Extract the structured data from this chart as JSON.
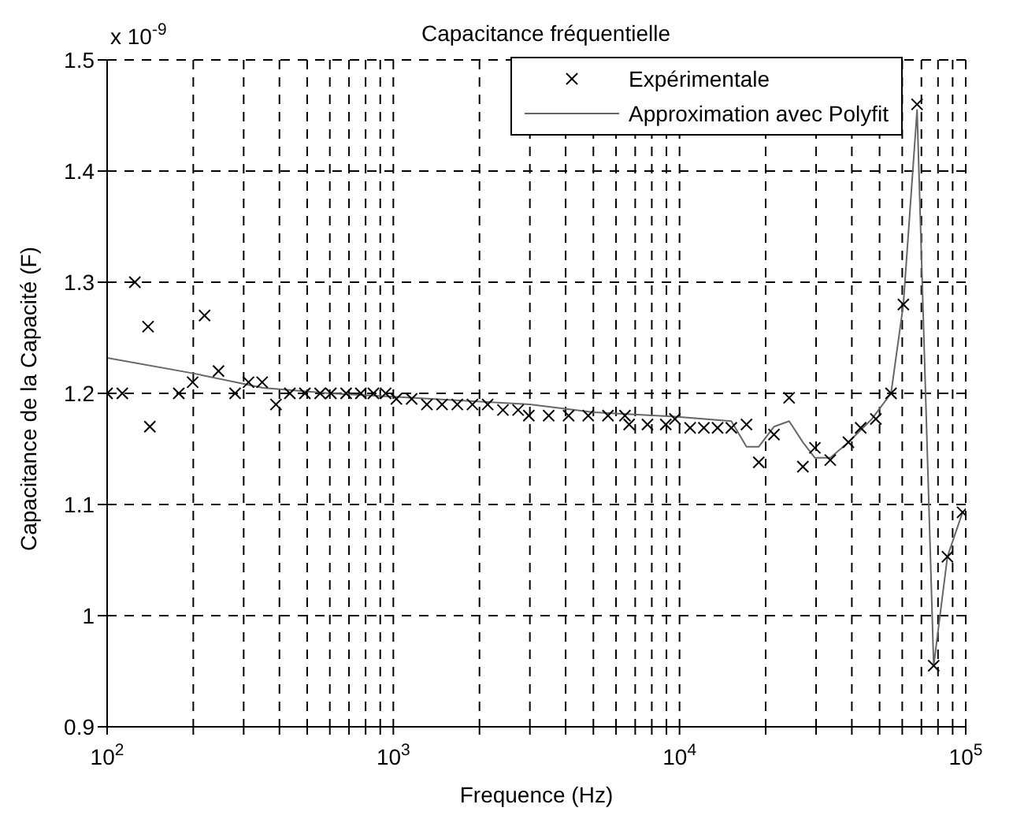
{
  "chart_data": {
    "type": "scatter",
    "title": "Capacitance fréquentielle",
    "xlabel": "Frequence (Hz)",
    "ylabel": "Capacitance de la Capacité (F)",
    "annotations": [
      "x 10$^{-9}$"
    ],
    "log": "x",
    "grid": true,
    "legend": "top right",
    "xlim": [
      100,
      100000
    ],
    "ylim": [
      0.9,
      1.5
    ],
    "xticks": [
      {
        "value": 100,
        "label": "10$^{2}$"
      },
      {
        "value": 200,
        "label": null
      },
      {
        "value": 300,
        "label": null
      },
      {
        "value": 400,
        "label": null
      },
      {
        "value": 500,
        "label": null
      },
      {
        "value": 600,
        "label": null
      },
      {
        "value": 700,
        "label": null
      },
      {
        "value": 800,
        "label": null
      },
      {
        "value": 900,
        "label": null
      },
      {
        "value": 1000,
        "label": "10$^{3}$"
      },
      {
        "value": 2000,
        "label": null
      },
      {
        "value": 3000,
        "label": null
      },
      {
        "value": 4000,
        "label": null
      },
      {
        "value": 5000,
        "label": null
      },
      {
        "value": 6000,
        "label": null
      },
      {
        "value": 7000,
        "label": null
      },
      {
        "value": 8000,
        "label": null
      },
      {
        "value": 9000,
        "label": null
      },
      {
        "value": 10000,
        "label": "10$^{4}$"
      },
      {
        "value": 20000,
        "label": null
      },
      {
        "value": 30000,
        "label": null
      },
      {
        "value": 40000,
        "label": null
      },
      {
        "value": 50000,
        "label": null
      },
      {
        "value": 60000,
        "label": null
      },
      {
        "value": 70000,
        "label": null
      },
      {
        "value": 80000,
        "label": null
      },
      {
        "value": 90000,
        "label": null
      },
      {
        "value": 100000,
        "label": "10$^{5}$"
      }
    ],
    "yticks": [
      0.9,
      1,
      1.1,
      1.2,
      1.3,
      1.4,
      1.5
    ],
    "series": [
      {
        "name": "Expérimentale",
        "marker": "cross",
        "color": "#000000",
        "x": [
          100,
          113,
          125,
          139,
          141,
          178,
          199,
          219,
          245,
          280,
          312,
          348,
          389,
          435,
          491,
          555,
          605,
          684,
          770,
          852,
          940,
          1025,
          1159,
          1310,
          1480,
          1673,
          1890,
          2136,
          2415,
          2729,
          2974,
          3490,
          4096,
          4797,
          5623,
          6446,
          6668,
          7727,
          8954,
          9638,
          10890,
          12160,
          13580,
          15170,
          17140,
          18920,
          21380,
          24150,
          26980,
          29720,
          33630,
          38910,
          42950,
          48530,
          54830,
          60540,
          67610,
          77270,
          86300,
          97470
        ],
        "values": [
          1.2,
          1.2,
          1.3,
          1.26,
          1.17,
          1.2,
          1.21,
          1.27,
          1.22,
          1.2,
          1.21,
          1.21,
          1.19,
          1.2,
          1.2,
          1.2,
          1.2,
          1.2,
          1.2,
          1.2,
          1.2,
          1.195,
          1.195,
          1.19,
          1.19,
          1.19,
          1.19,
          1.19,
          1.185,
          1.185,
          1.18,
          1.18,
          1.18,
          1.18,
          1.18,
          1.18,
          1.172,
          1.172,
          1.172,
          1.177,
          1.169,
          1.169,
          1.169,
          1.169,
          1.172,
          1.138,
          1.163,
          1.196,
          1.134,
          1.151,
          1.14,
          1.156,
          1.169,
          1.177,
          1.2,
          1.28,
          1.46,
          0.955,
          1.053,
          1.093
        ]
      },
      {
        "name": "Approximation avec Polyfit",
        "type": "line",
        "marker": "none",
        "line_style": "solid",
        "color": "#666666",
        "x": [
          100,
          200,
          350,
          600,
          1000,
          3000,
          5000,
          9638,
          15170,
          17140,
          18920,
          21380,
          24150,
          26980,
          29720,
          33630,
          38910,
          47000,
          54830,
          60540,
          67610,
          77270,
          86300,
          97470
        ],
        "values": [
          1.232,
          1.218,
          1.205,
          1.2,
          1.197,
          1.19,
          1.183,
          1.179,
          1.175,
          1.152,
          1.152,
          1.17,
          1.175,
          1.156,
          1.142,
          1.142,
          1.156,
          1.177,
          1.2,
          1.28,
          1.455,
          0.955,
          1.053,
          1.093
        ]
      }
    ]
  }
}
